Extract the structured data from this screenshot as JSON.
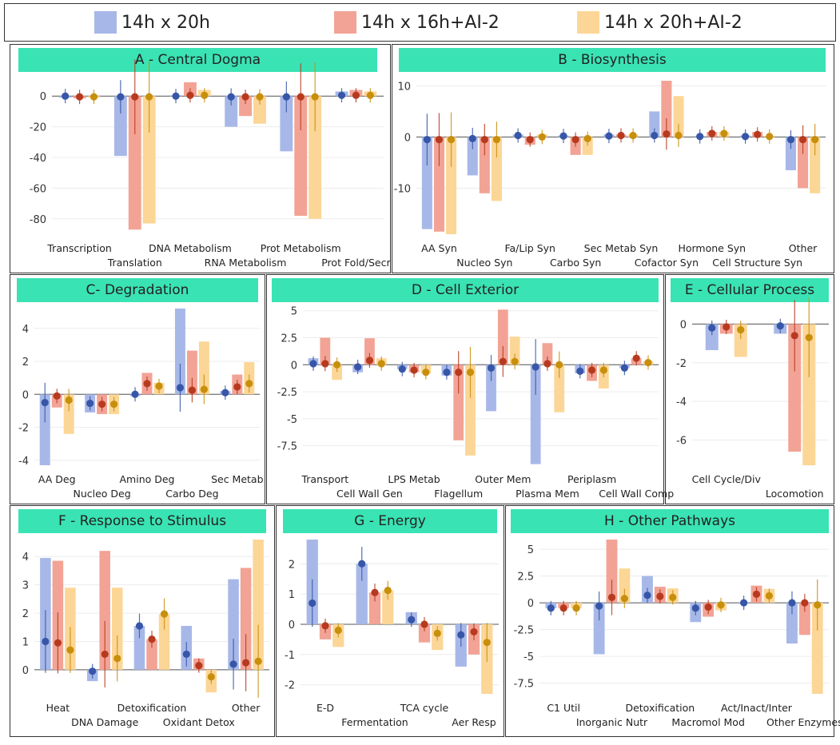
{
  "legend": {
    "items": [
      {
        "label": "14h x 20h",
        "color": "#a7b8e8"
      },
      {
        "label": "14h x 16h+AI-2",
        "color": "#f2a395"
      },
      {
        "label": "14h x 20h+AI-2",
        "color": "#fcd696"
      }
    ]
  },
  "series_colors": {
    "bar": [
      "#a7b8e8",
      "#f2a395",
      "#fcd696"
    ],
    "dot": [
      "#3756a7",
      "#b73a1f",
      "#c88f0c"
    ]
  },
  "chart_data": [
    {
      "id": "A",
      "type": "bar",
      "title": "A - Central Dogma",
      "ylim": [
        -90,
        10
      ],
      "yticks": [
        0,
        -20,
        -40,
        -60,
        -80
      ],
      "categories": [
        "Transcription",
        "Translation",
        "DNA Metabolism",
        "RNA Metabolism",
        "Prot Metabolism",
        "Prot Fold/Secr"
      ],
      "series": [
        {
          "name": "14h x 20h",
          "values": [
            -1,
            -39,
            0.5,
            -20,
            -36,
            3
          ]
        },
        {
          "name": "14h x 16h+AI-2",
          "values": [
            -1.5,
            -87,
            9,
            -13,
            -78,
            4
          ]
        },
        {
          "name": "14h x 20h+AI-2",
          "values": [
            -1,
            -83,
            4,
            -18,
            -80,
            3
          ]
        }
      ],
      "markers": [
        [
          0,
          -0.5,
          0,
          -0.5,
          -0.5,
          0.5
        ],
        [
          -0.5,
          -0.5,
          0.5,
          -0.5,
          -0.5,
          0.5
        ],
        [
          -0.5,
          -0.5,
          0.5,
          -0.5,
          -0.5,
          0.5
        ]
      ]
    },
    {
      "id": "B",
      "type": "bar",
      "title": "B - Biosynthesis",
      "ylim": [
        -19,
        11
      ],
      "yticks": [
        10,
        0,
        -10
      ],
      "categories": [
        "AA Syn",
        "Nucleo Syn",
        "Fa/Lip Syn",
        "Carbo Syn",
        "Sec Metab Syn",
        "Cofactor Syn",
        "Hormone Syn",
        "Cell Structure Syn",
        "Other"
      ],
      "series": [
        {
          "name": "14h x 20h",
          "values": [
            -18,
            -7.5,
            0.5,
            0.3,
            0.5,
            5,
            0.2,
            0.3,
            -6.5
          ]
        },
        {
          "name": "14h x 16h+AI-2",
          "values": [
            -18.5,
            -11,
            -1.5,
            -3.5,
            0.5,
            11,
            1,
            1,
            -10
          ]
        },
        {
          "name": "14h x 20h+AI-2",
          "values": [
            -19,
            -12.5,
            0.5,
            -3.5,
            0.5,
            8,
            1,
            0.2,
            -11
          ]
        }
      ],
      "markers": [
        [
          -0.5,
          -0.3,
          0.3,
          0.2,
          0.2,
          0.3,
          0.1,
          0.1,
          -0.5
        ],
        [
          -0.5,
          -0.5,
          -0.5,
          -0.5,
          0.3,
          0.6,
          0.7,
          0.5,
          -0.5
        ],
        [
          -0.5,
          -0.5,
          0,
          -0.3,
          0.3,
          0.3,
          0.7,
          0.1,
          -0.5
        ]
      ]
    },
    {
      "id": "C",
      "type": "bar",
      "title": "C- Degradation",
      "ylim": [
        -4.3,
        5.2
      ],
      "yticks": [
        4,
        2,
        0,
        -2,
        -4
      ],
      "categories": [
        "AA Deg",
        "Nucleo Deg",
        "Amino Deg",
        "Carbo Deg",
        "Sec Metab"
      ],
      "series": [
        {
          "name": "14h x 20h",
          "values": [
            -4.3,
            -1.1,
            -0.1,
            5.2,
            0.2
          ]
        },
        {
          "name": "14h x 16h+AI-2",
          "values": [
            -0.8,
            -1.2,
            1.3,
            2.65,
            1.2
          ]
        },
        {
          "name": "14h x 20h+AI-2",
          "values": [
            -2.4,
            -1.2,
            0.7,
            3.2,
            1.95
          ]
        }
      ],
      "markers": [
        [
          -0.5,
          -0.55,
          0,
          0.4,
          0.1
        ],
        [
          -0.1,
          -0.6,
          0.65,
          0.25,
          0.45
        ],
        [
          -0.35,
          -0.6,
          0.5,
          0.3,
          0.65
        ]
      ]
    },
    {
      "id": "D",
      "type": "bar",
      "title": "D - Cell Exterior",
      "ylim": [
        -9.3,
        5.2
      ],
      "yticks": [
        5,
        2.5,
        0,
        -2.5,
        -5,
        -7.5
      ],
      "categories": [
        "Transport",
        "Cell Wall Gen",
        "LPS Metab",
        "Flagellum",
        "Outer Mem",
        "Plasma Mem",
        "Periplasm",
        "Cell Wall Comp"
      ],
      "series": [
        {
          "name": "14h x 20h",
          "values": [
            0.6,
            -0.7,
            -0.4,
            -1.0,
            -4.3,
            -9.2,
            -0.8,
            -0.3
          ]
        },
        {
          "name": "14h x 16h+AI-2",
          "values": [
            2.5,
            2.45,
            -0.7,
            -7.0,
            5.1,
            2.0,
            -1.5,
            0.6
          ]
        },
        {
          "name": "14h x 20h+AI-2",
          "values": [
            -1.4,
            0.6,
            -0.8,
            -8.4,
            2.6,
            -4.4,
            -2.2,
            0.3
          ]
        }
      ],
      "markers": [
        [
          0.1,
          -0.2,
          -0.4,
          -0.7,
          -0.3,
          -0.2,
          -0.6,
          -0.3
        ],
        [
          0.1,
          0.4,
          -0.5,
          -0.7,
          0.3,
          0.1,
          -0.5,
          0.6
        ],
        [
          0,
          0.1,
          -0.7,
          -0.7,
          0.3,
          0,
          -0.5,
          0.2
        ]
      ]
    },
    {
      "id": "E",
      "type": "bar",
      "title": "E - Cellular Process",
      "ylim": [
        -7.3,
        0.8
      ],
      "yticks": [
        0,
        -2,
        -4,
        -6
      ],
      "categories": [
        "Cell Cycle/Div",
        "Locomotion"
      ],
      "series": [
        {
          "name": "14h x 20h",
          "values": [
            -1.35,
            -0.5
          ]
        },
        {
          "name": "14h x 16h+AI-2",
          "values": [
            -0.5,
            -6.6
          ]
        },
        {
          "name": "14h x 20h+AI-2",
          "values": [
            -1.7,
            -7.3
          ]
        }
      ],
      "markers": [
        [
          -0.2,
          -0.1
        ],
        [
          -0.15,
          -0.6
        ],
        [
          -0.3,
          -0.7
        ]
      ]
    },
    {
      "id": "F",
      "type": "bar",
      "title": "F - Response to Stimulus",
      "ylim": [
        -0.85,
        4.6
      ],
      "yticks": [
        4,
        3,
        2,
        1,
        0
      ],
      "categories": [
        "Heat",
        "DNA Damage",
        "Detoxification",
        "Oxidant Detox",
        "Other"
      ],
      "series": [
        {
          "name": "14h x 20h",
          "values": [
            3.95,
            -0.4,
            1.55,
            1.55,
            3.2
          ]
        },
        {
          "name": "14h x 16h+AI-2",
          "values": [
            3.85,
            4.2,
            1.08,
            0.4,
            3.6
          ]
        },
        {
          "name": "14h x 20h+AI-2",
          "values": [
            2.9,
            2.9,
            1.97,
            -0.8,
            4.6
          ]
        }
      ],
      "markers": [
        [
          1.0,
          -0.05,
          1.55,
          0.55,
          0.2
        ],
        [
          0.95,
          0.55,
          1.08,
          0.15,
          0.25
        ],
        [
          0.7,
          0.4,
          1.97,
          -0.25,
          0.3
        ]
      ]
    },
    {
      "id": "G",
      "type": "bar",
      "title": "G - Energy",
      "ylim": [
        -2.3,
        2.8
      ],
      "yticks": [
        2,
        1,
        0,
        -1,
        -2
      ],
      "categories": [
        "E-D",
        "Fermentation",
        "TCA cycle",
        "Aer Resp"
      ],
      "series": [
        {
          "name": "14h x 20h",
          "values": [
            2.8,
            2.0,
            0.4,
            -1.4
          ]
        },
        {
          "name": "14h x 16h+AI-2",
          "values": [
            -0.5,
            1.05,
            -0.6,
            -1.0
          ]
        },
        {
          "name": "14h x 20h+AI-2",
          "values": [
            -0.75,
            1.12,
            -0.85,
            -2.3
          ]
        }
      ],
      "markers": [
        [
          0.7,
          2.0,
          0.15,
          -0.35
        ],
        [
          -0.05,
          1.05,
          0.0,
          -0.25
        ],
        [
          -0.2,
          1.12,
          -0.3,
          -0.6
        ]
      ]
    },
    {
      "id": "H",
      "type": "bar",
      "title": "H - Other Pathways",
      "ylim": [
        -8.5,
        5.9
      ],
      "yticks": [
        5,
        2.5,
        0,
        -2.5,
        -5,
        -7.5
      ],
      "categories": [
        "C1 Util",
        "Inorganic Nutr",
        "Detoxification",
        "Macromol Mod",
        "Act/Inact/Inter",
        "Other Enzymes"
      ],
      "series": [
        {
          "name": "14h x 20h",
          "values": [
            -0.5,
            -4.8,
            2.5,
            -1.8,
            -0.1,
            -3.8
          ]
        },
        {
          "name": "14h x 16h+AI-2",
          "values": [
            -0.5,
            5.9,
            1.5,
            -1.3,
            1.6,
            -3.0
          ]
        },
        {
          "name": "14h x 20h+AI-2",
          "values": [
            -0.5,
            3.2,
            1.35,
            -0.7,
            1.3,
            -8.5
          ]
        }
      ],
      "markers": [
        [
          -0.5,
          -0.3,
          0.7,
          -0.5,
          0,
          0
        ],
        [
          -0.5,
          0.5,
          0.6,
          -0.4,
          0.8,
          0
        ],
        [
          -0.5,
          0.4,
          0.5,
          -0.2,
          0.65,
          -0.2
        ]
      ]
    }
  ]
}
